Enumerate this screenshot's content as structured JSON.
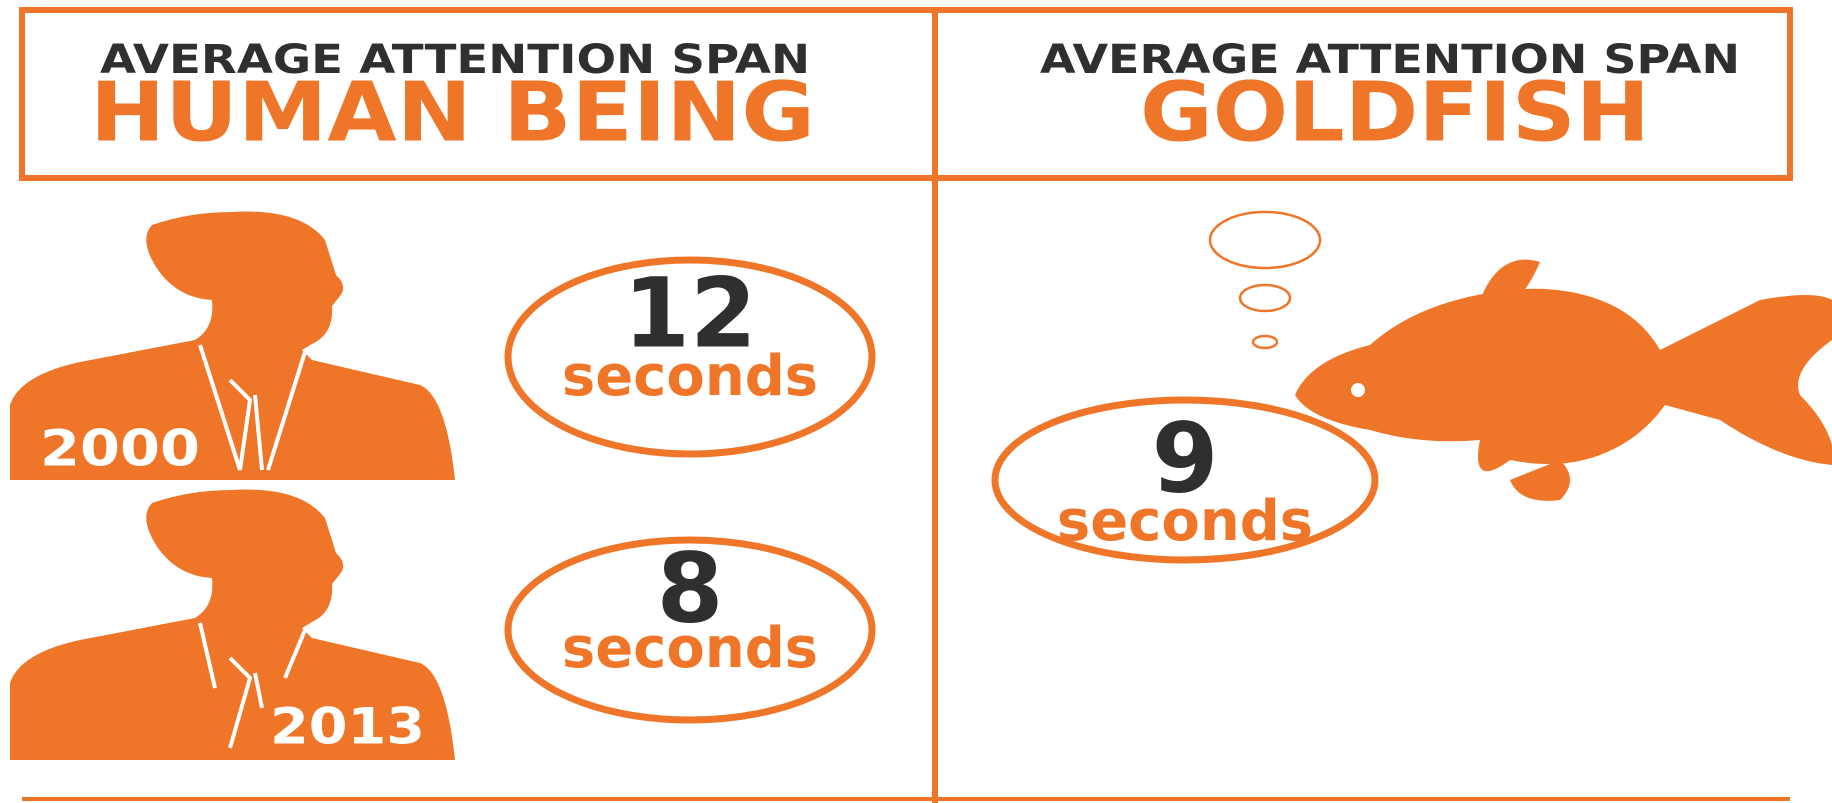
{
  "left": {
    "heading": "AVERAGE ATTENTION SPAN",
    "subject": "HUMAN BEING",
    "entries": [
      {
        "year": 2000,
        "number": 12,
        "unit": "seconds"
      },
      {
        "year": 2013,
        "number": 8,
        "unit": "seconds"
      }
    ]
  },
  "right": {
    "heading": "AVERAGE ATTENTION SPAN",
    "subject": "GOLDFISH",
    "entries": [
      {
        "number": 9,
        "unit": "seconds"
      }
    ]
  }
}
